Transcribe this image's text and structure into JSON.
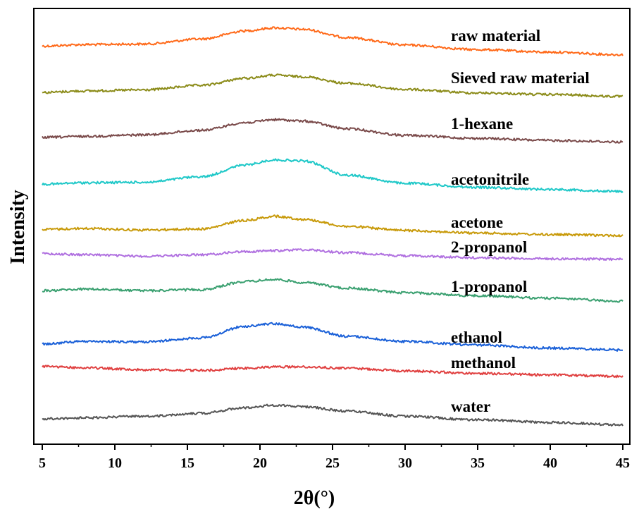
{
  "chart_data": {
    "type": "line",
    "xlabel": "2θ(°)",
    "ylabel": "Intensity",
    "xlim": [
      5,
      45
    ],
    "x_ticks": [
      5,
      10,
      15,
      20,
      25,
      30,
      35,
      40,
      45
    ],
    "y_ticks_shown": false,
    "grid": false,
    "legend": "inline labels at right of each curve",
    "y_units": "arbitrary (stacked, offset)",
    "x_sample": [
      5,
      8,
      12,
      16,
      19,
      21,
      23,
      26,
      30,
      35,
      40,
      45
    ],
    "series": [
      {
        "name": "raw material",
        "color": "#ff6a1a",
        "values": [
          32,
          35,
          36,
          46,
          62,
          68,
          65,
          49,
          34,
          25,
          20,
          15
        ]
      },
      {
        "name": "Sieved raw material",
        "color": "#8c8c1a",
        "values": [
          24,
          27,
          29,
          38,
          52,
          58,
          55,
          42,
          30,
          23,
          20,
          16
        ]
      },
      {
        "name": "1-hexane",
        "color": "#7a4a4a",
        "values": [
          23,
          25,
          28,
          37,
          52,
          58,
          55,
          40,
          27,
          21,
          17,
          14
        ]
      },
      {
        "name": "acetonitrile",
        "color": "#1fc8c8",
        "values": [
          32,
          35,
          36,
          47,
          70,
          80,
          78,
          50,
          34,
          26,
          22,
          18
        ]
      },
      {
        "name": "acetone",
        "color": "#c89a0a",
        "values": [
          18,
          20,
          17,
          19,
          36,
          44,
          38,
          24,
          16,
          11,
          8,
          6
        ]
      },
      {
        "name": "2-propanol",
        "color": "#b070e0",
        "values": [
          30,
          28,
          25,
          28,
          34,
          36,
          38,
          32,
          26,
          22,
          20,
          19
        ]
      },
      {
        "name": "1-propanol",
        "color": "#3aa070",
        "values": [
          28,
          31,
          28,
          30,
          46,
          50,
          44,
          33,
          24,
          18,
          13,
          7
        ]
      },
      {
        "name": "ethanol",
        "color": "#1a60d8",
        "values": [
          23,
          28,
          27,
          35,
          58,
          63,
          56,
          38,
          28,
          21,
          15,
          11
        ]
      },
      {
        "name": "methanol",
        "color": "#e04040",
        "values": [
          29,
          26,
          22,
          21,
          25,
          28,
          28,
          25,
          20,
          15,
          12,
          9
        ]
      },
      {
        "name": "water",
        "color": "#555555",
        "values": [
          20,
          22,
          25,
          31,
          42,
          47,
          44,
          35,
          25,
          18,
          13,
          8
        ]
      }
    ]
  }
}
